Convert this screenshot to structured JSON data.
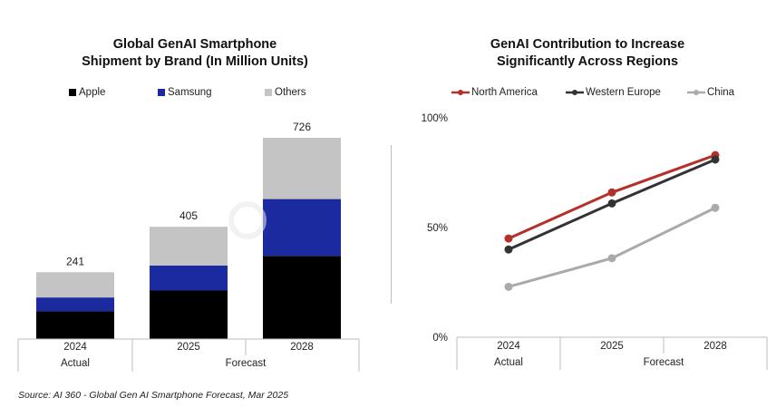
{
  "source_note": "Source: AI 360 - Global Gen AI Smartphone Forecast, Mar 2025",
  "watermark_text": "Counterpoint",
  "colors": {
    "apple": "#000000",
    "samsung": "#1c2aa0",
    "others": "#c4c4c4",
    "north_america": "#b5302a",
    "western_europe": "#333333",
    "china": "#aaaaaa"
  },
  "chart_data": [
    {
      "type": "bar",
      "stacked": true,
      "title_lines": [
        "Global GenAI Smartphone",
        "Shipment by Brand (In Million Units)"
      ],
      "categories": [
        "2024",
        "2025",
        "2028"
      ],
      "group_labels": [
        {
          "label": "Actual",
          "categories": [
            "2024"
          ]
        },
        {
          "label": "Forecast",
          "categories": [
            "2025",
            "2028"
          ]
        }
      ],
      "series": [
        {
          "name": "Apple",
          "values": [
            100,
            175,
            300
          ]
        },
        {
          "name": "Samsung",
          "values": [
            50,
            90,
            205
          ]
        },
        {
          "name": "Others",
          "values": [
            91,
            140,
            221
          ]
        }
      ],
      "totals": [
        "241",
        "405",
        "726"
      ],
      "ylim": [
        0,
        726
      ],
      "legend_position": "top",
      "grid": false
    },
    {
      "type": "line",
      "title_lines": [
        "GenAI Contribution to Increase",
        "Significantly Across Regions"
      ],
      "categories": [
        "2024",
        "2025",
        "2028"
      ],
      "group_labels": [
        {
          "label": "Actual",
          "categories": [
            "2024"
          ]
        },
        {
          "label": "Forecast",
          "categories": [
            "2025",
            "2028"
          ]
        }
      ],
      "series": [
        {
          "name": "North America",
          "values": [
            45,
            66,
            83
          ]
        },
        {
          "name": "Western Europe",
          "values": [
            40,
            61,
            81
          ]
        },
        {
          "name": "China",
          "values": [
            23,
            36,
            59
          ]
        }
      ],
      "y_ticks": [
        "0%",
        "50%",
        "100%"
      ],
      "ylim": [
        0,
        100
      ],
      "legend_position": "top",
      "grid": false
    }
  ]
}
